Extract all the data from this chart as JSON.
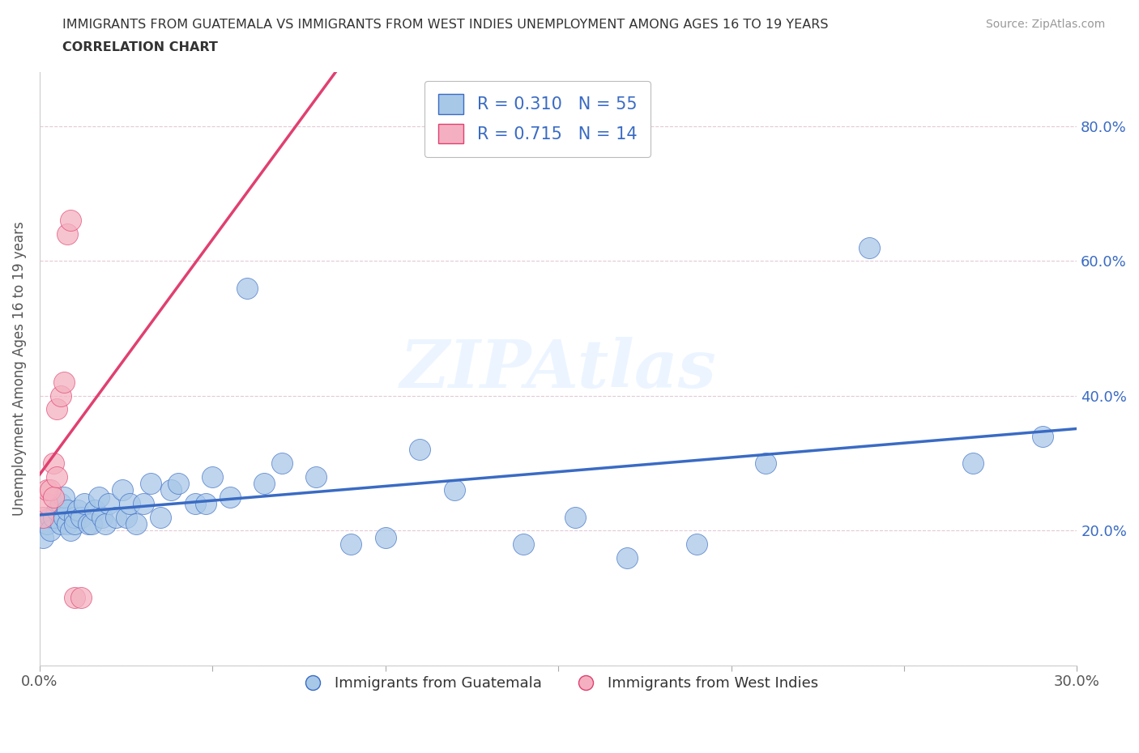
{
  "title_line1": "IMMIGRANTS FROM GUATEMALA VS IMMIGRANTS FROM WEST INDIES UNEMPLOYMENT AMONG AGES 16 TO 19 YEARS",
  "title_line2": "CORRELATION CHART",
  "source_text": "Source: ZipAtlas.com",
  "ylabel": "Unemployment Among Ages 16 to 19 years",
  "xlim": [
    0.0,
    0.3
  ],
  "ylim": [
    0.0,
    0.88
  ],
  "xticks": [
    0.0,
    0.05,
    0.1,
    0.15,
    0.2,
    0.25,
    0.3
  ],
  "yticks": [
    0.0,
    0.2,
    0.4,
    0.6,
    0.8
  ],
  "watermark": "ZIPAtlas",
  "blue_color": "#A8C8E8",
  "pink_color": "#F4B0C0",
  "blue_line_color": "#3A6BC4",
  "pink_line_color": "#E04070",
  "R_blue": 0.31,
  "N_blue": 55,
  "R_pink": 0.715,
  "N_pink": 14,
  "guatemala_x": [
    0.001,
    0.002,
    0.003,
    0.003,
    0.004,
    0.005,
    0.006,
    0.006,
    0.007,
    0.007,
    0.008,
    0.008,
    0.009,
    0.01,
    0.01,
    0.011,
    0.012,
    0.013,
    0.014,
    0.015,
    0.016,
    0.017,
    0.018,
    0.019,
    0.02,
    0.022,
    0.024,
    0.025,
    0.026,
    0.028,
    0.03,
    0.032,
    0.035,
    0.038,
    0.04,
    0.045,
    0.048,
    0.05,
    0.055,
    0.06,
    0.065,
    0.07,
    0.08,
    0.09,
    0.1,
    0.11,
    0.12,
    0.14,
    0.155,
    0.17,
    0.19,
    0.21,
    0.24,
    0.27,
    0.29
  ],
  "guatemala_y": [
    0.19,
    0.21,
    0.22,
    0.2,
    0.22,
    0.23,
    0.24,
    0.21,
    0.22,
    0.25,
    0.21,
    0.23,
    0.2,
    0.22,
    0.21,
    0.23,
    0.22,
    0.24,
    0.21,
    0.21,
    0.23,
    0.25,
    0.22,
    0.21,
    0.24,
    0.22,
    0.26,
    0.22,
    0.24,
    0.21,
    0.24,
    0.27,
    0.22,
    0.26,
    0.27,
    0.24,
    0.24,
    0.28,
    0.25,
    0.56,
    0.27,
    0.3,
    0.28,
    0.18,
    0.19,
    0.32,
    0.26,
    0.18,
    0.22,
    0.16,
    0.18,
    0.3,
    0.62,
    0.3,
    0.34
  ],
  "westindies_x": [
    0.001,
    0.002,
    0.002,
    0.003,
    0.004,
    0.004,
    0.005,
    0.005,
    0.006,
    0.007,
    0.008,
    0.009,
    0.01,
    0.012
  ],
  "westindies_y": [
    0.22,
    0.24,
    0.26,
    0.26,
    0.3,
    0.25,
    0.38,
    0.28,
    0.4,
    0.42,
    0.64,
    0.66,
    0.1,
    0.1
  ]
}
